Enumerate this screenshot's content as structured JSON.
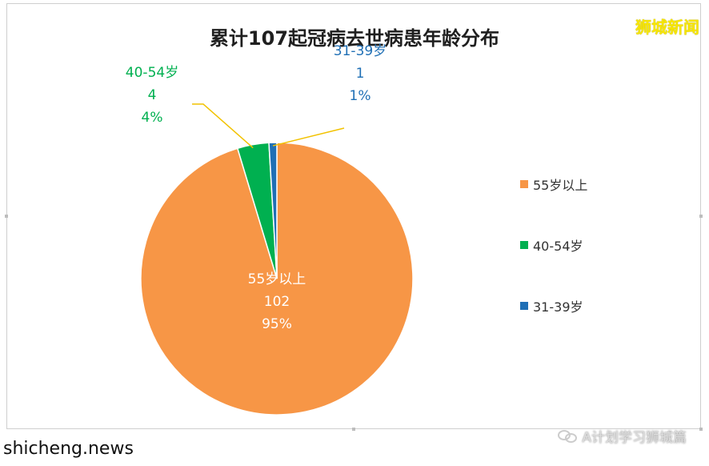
{
  "chart_data": {
    "type": "pie",
    "title": "累计107起冠病去世病患年龄分布",
    "categories": [
      "55岁以上",
      "40-54岁",
      "31-39岁"
    ],
    "values": [
      102,
      4,
      1
    ],
    "percent_labels": [
      "95%",
      "4%",
      "1%"
    ],
    "value_labels": [
      "102",
      "4",
      "1"
    ],
    "colors": [
      "#F79646",
      "#00B050",
      "#1F6FB5"
    ],
    "label_colors": [
      "#ffffff",
      "#00B050",
      "#1F6FB5"
    ],
    "legend": {
      "placement": "right",
      "entries": [
        "55岁以上",
        "40-54岁",
        "31-39岁"
      ]
    }
  },
  "watermarks": {
    "top_right": "狮城新闻",
    "bottom_left": "shicheng.news",
    "bottom_right": "A计划学习狮城篇"
  },
  "icons": {
    "bottom_right": "wechat-icon"
  }
}
